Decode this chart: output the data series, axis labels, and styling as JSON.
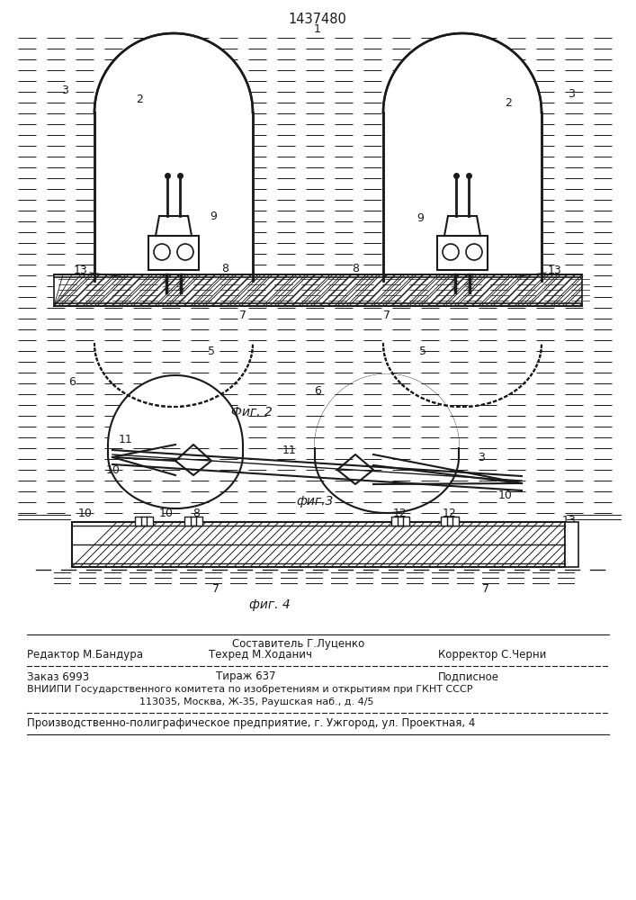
{
  "title": "1437480",
  "fig2_label": "Фиг. 2",
  "fig3_label": "фиг.3",
  "fig4_label": "фиг. 4",
  "editor_line": "Редактор М.Бандура",
  "composer_line1": "Составитель Г.Луценко",
  "composer_line2": "Техред М.Ходанич",
  "corrector_line": "Корректор С.Черни",
  "order_line": "Заказ 6993",
  "print_line": "Тираж 637",
  "subscription_line": "Подписное",
  "vnipi_line1": "ВНИИПИ Государственного комитета по изобретениям и открытиям при ГКНТ СССР",
  "vnipi_line2": "113035, Москва, Ж-35, Раушская наб., д. 4/5",
  "factory_line": "Производственно-полиграфическое предприятие, г. Ужгород, ул. Проектная, 4",
  "bg_color": "#ffffff",
  "lc": "#1a1a1a"
}
